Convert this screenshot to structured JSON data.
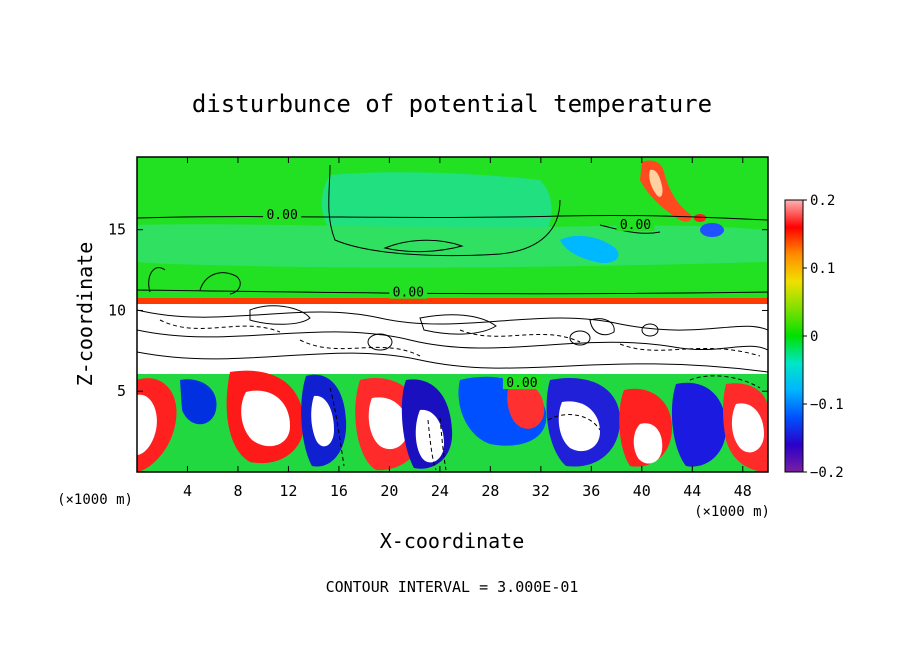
{
  "chart_data": {
    "type": "heatmap",
    "title": "disturbunce of potential temperature",
    "xlabel": "X-coordinate",
    "ylabel": "Z-coordinate",
    "x_unit": "(×1000 m)",
    "y_unit": "(×1000 m)",
    "x_ticks": [
      "4",
      "8",
      "12",
      "16",
      "20",
      "24",
      "28",
      "32",
      "36",
      "40",
      "44",
      "48"
    ],
    "y_ticks": [
      "5",
      "10",
      "15"
    ],
    "xlim": [
      0,
      50
    ],
    "ylim": [
      0,
      19.5
    ],
    "colorbar": {
      "ticks": [
        "0.2",
        "0.1",
        "0",
        "−0.1",
        "−0.2"
      ],
      "range": [
        -0.2,
        0.2
      ]
    },
    "contour_labels": [
      {
        "text": "0.00",
        "x": 11.5,
        "y": 15.9
      },
      {
        "text": "0.00",
        "x": 39.5,
        "y": 15.3
      },
      {
        "text": "0.00",
        "x": 21.5,
        "y": 11.1
      },
      {
        "text": "0.00",
        "x": 30.5,
        "y": 5.5
      }
    ],
    "footer": "CONTOUR INTERVAL = 3.000E-01"
  }
}
